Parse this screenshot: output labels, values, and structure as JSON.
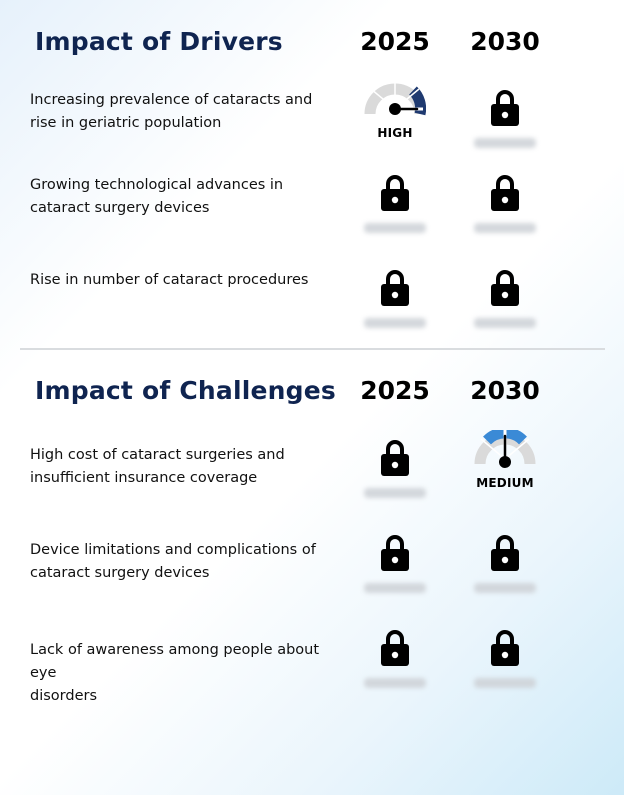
{
  "drivers": {
    "title": "Impact of Drivers",
    "year_a": "2025",
    "year_b": "2030",
    "rows": [
      {
        "line1": "Increasing prevalence of cataracts and",
        "line2": "rise in geriatric population",
        "a": {
          "type": "gauge",
          "label": "HIGH",
          "level": "high"
        },
        "b": {
          "type": "lock"
        }
      },
      {
        "line1": "Growing technological advances in",
        "line2": "cataract surgery devices",
        "a": {
          "type": "lock"
        },
        "b": {
          "type": "lock"
        }
      },
      {
        "line1": "Rise in number of cataract procedures",
        "line2": "",
        "a": {
          "type": "lock"
        },
        "b": {
          "type": "lock"
        }
      }
    ]
  },
  "challenges": {
    "title": "Impact of Challenges",
    "year_a": "2025",
    "year_b": "2030",
    "rows": [
      {
        "line1": "High cost of cataract surgeries and",
        "line2": "insufficient insurance coverage",
        "a": {
          "type": "lock"
        },
        "b": {
          "type": "gauge",
          "label": "MEDIUM",
          "level": "medium"
        }
      },
      {
        "line1": "Device limitations and complications of",
        "line2": "cataract surgery devices",
        "a": {
          "type": "lock"
        },
        "b": {
          "type": "lock"
        }
      },
      {
        "line1": "Lack of awareness among people about eye",
        "line2": "disorders",
        "a": {
          "type": "lock"
        },
        "b": {
          "type": "lock"
        }
      }
    ]
  },
  "colors": {
    "high": "#1f3a70",
    "medium": "#3a8ad6",
    "gauge_track": "#dadada",
    "lock": "#000000"
  }
}
